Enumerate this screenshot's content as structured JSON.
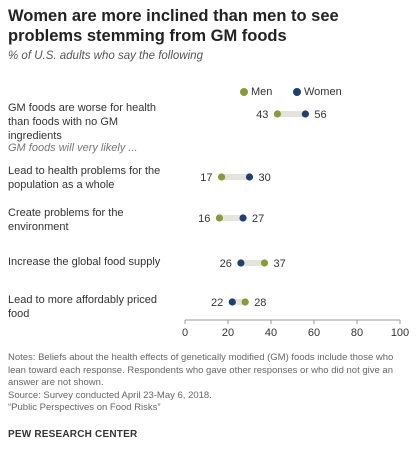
{
  "title": "Women are more inclined than men to see problems stemming from GM foods",
  "subtitle": "% of U.S. adults who say the following",
  "section_label": "GM foods will very likely ...",
  "notes": [
    "Notes: Beliefs about the health effects of genetically modified (GM) foods include those who lean toward each response. Respondents who gave other responses or who did not give an answer are not shown.",
    "Source: Survey conducted April 23-May 6, 2018.",
    "“Public Perspectives on Food Risks”"
  ],
  "source_org": "PEW RESEARCH CENTER",
  "colors": {
    "men": "#8a9a3a",
    "women": "#1f3f6e",
    "connector": "#e4e4dc"
  },
  "chart_data": {
    "type": "dot",
    "title": "Women are more inclined than men to see problems stemming from GM foods",
    "subtitle": "% of U.S. adults who say the following",
    "categories": [
      "GM foods are worse for health than foods with no GM ingredients",
      "Lead to health problems for the population as a whole",
      "Create problems for the environment",
      "Increase the global food supply",
      "Lead to more affordably priced food"
    ],
    "series": [
      {
        "name": "Men",
        "values": [
          43,
          17,
          16,
          37,
          28
        ]
      },
      {
        "name": "Women",
        "values": [
          56,
          30,
          27,
          26,
          22
        ]
      }
    ],
    "xlim": [
      0,
      100
    ],
    "xticks": [
      "0",
      "20",
      "40",
      "60",
      "80",
      "100"
    ],
    "legend": "top-right",
    "grid": false
  }
}
